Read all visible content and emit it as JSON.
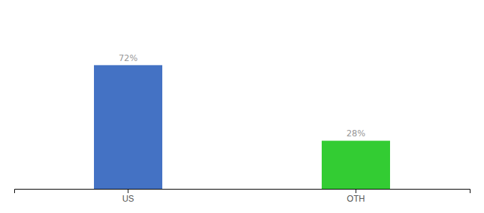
{
  "chart_data": {
    "type": "bar",
    "categories": [
      "US",
      "OTH"
    ],
    "values": [
      72,
      28
    ],
    "value_labels": [
      "72%",
      "28%"
    ],
    "colors": [
      "#4472C4",
      "#33CC33"
    ],
    "ylim": [
      0,
      100
    ],
    "grid": false,
    "data_labels": true,
    "tick_labels": "x"
  }
}
